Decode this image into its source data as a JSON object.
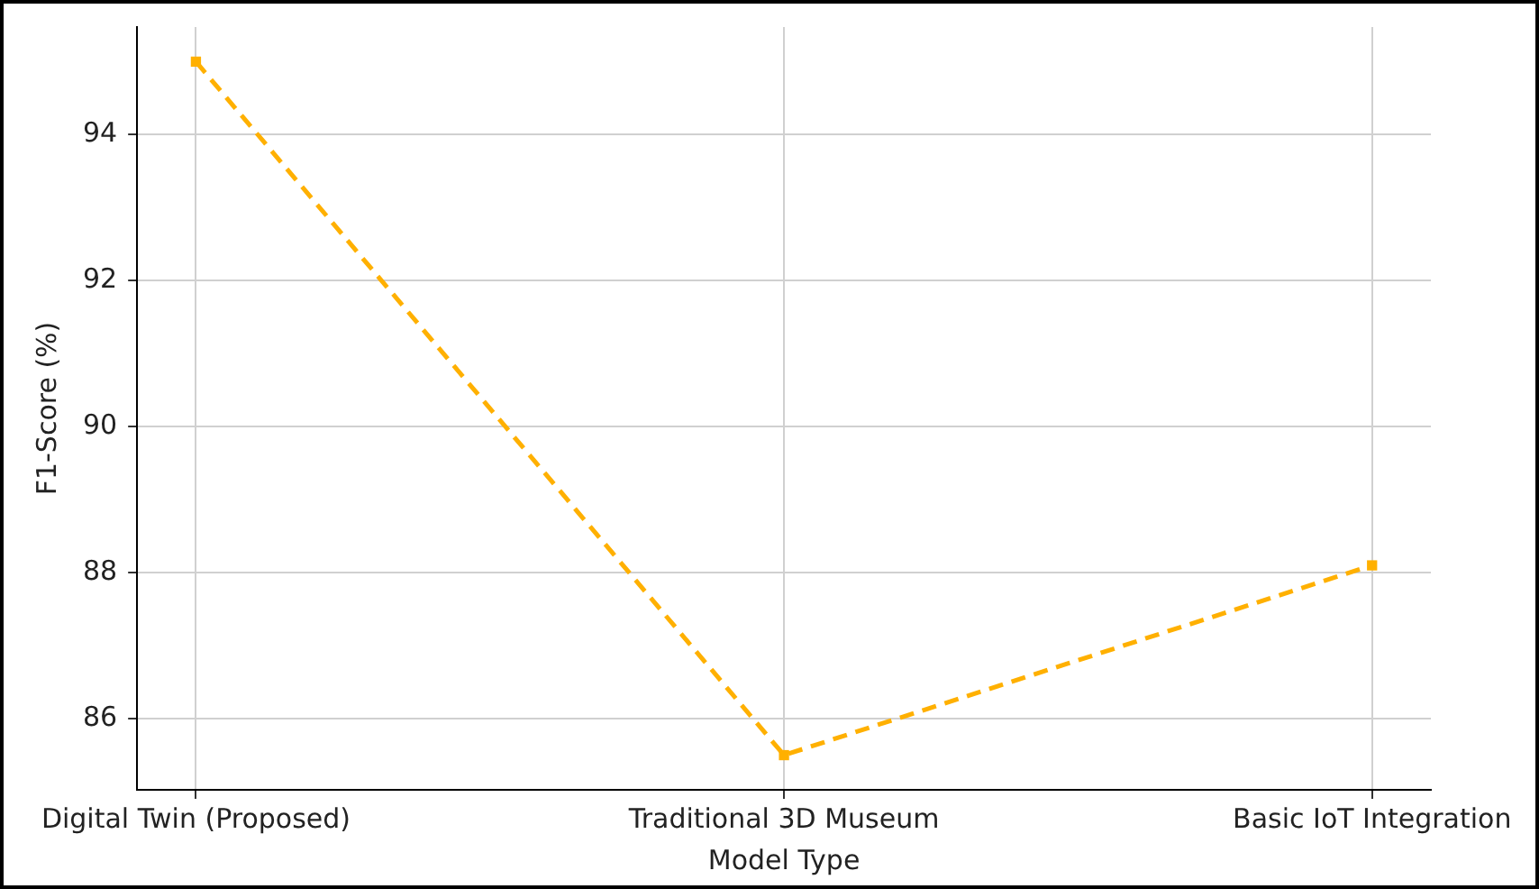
{
  "chart_data": {
    "type": "line",
    "xlabel": "Model Type",
    "ylabel": "F1-Score (%)",
    "categories": [
      "Digital Twin (Proposed)",
      "Traditional 3D Museum",
      "Basic IoT Integration"
    ],
    "series": [
      {
        "color": "#ffb000",
        "values": [
          95,
          85.5,
          88.1
        ]
      }
    ],
    "ylim": [
      85.025,
      95.475
    ],
    "yticks": [
      86,
      88,
      90,
      92,
      94
    ],
    "grid": true,
    "marker": "square",
    "line_style": "dashed",
    "legend": false
  }
}
